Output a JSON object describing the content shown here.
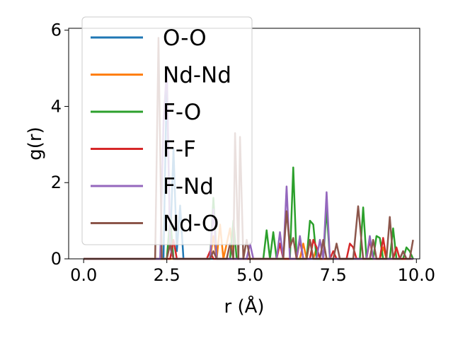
{
  "chart_data": {
    "type": "line",
    "title": "",
    "xlabel": "r (Å)",
    "ylabel": "g(r)",
    "xlim": [
      -0.45,
      10.1
    ],
    "ylim": [
      0,
      6.05
    ],
    "xticks": [
      0.0,
      2.5,
      5.0,
      7.5,
      10.0
    ],
    "xtick_labels": [
      "0.0",
      "2.5",
      "5.0",
      "7.5",
      "10.0"
    ],
    "yticks": [
      0,
      2,
      4,
      6
    ],
    "ytick_labels": [
      "0",
      "2",
      "4",
      "6"
    ],
    "grid": false,
    "legend_position": "upper-left",
    "series": [
      {
        "name": "O-O",
        "color": "#1f77b4",
        "points": [
          [
            0,
            0
          ],
          [
            2.4,
            0
          ],
          [
            2.5,
            4.8
          ],
          [
            2.6,
            0.3
          ],
          [
            2.7,
            2.9
          ],
          [
            2.8,
            0.2
          ],
          [
            2.9,
            1.4
          ],
          [
            3.0,
            0
          ],
          [
            9.9,
            0
          ]
        ]
      },
      {
        "name": "Nd-Nd",
        "color": "#ff7f0e",
        "points": [
          [
            0,
            0
          ],
          [
            3.8,
            0
          ],
          [
            3.9,
            0.6
          ],
          [
            4.0,
            0
          ],
          [
            4.1,
            0.9
          ],
          [
            4.2,
            0
          ],
          [
            4.4,
            0.8
          ],
          [
            4.5,
            0
          ],
          [
            6.5,
            0
          ],
          [
            6.6,
            0.4
          ],
          [
            6.7,
            0
          ],
          [
            6.8,
            0.5
          ],
          [
            6.9,
            0
          ],
          [
            7.0,
            0.3
          ],
          [
            7.1,
            0
          ],
          [
            8.9,
            0
          ],
          [
            9.0,
            0.3
          ],
          [
            9.1,
            0
          ],
          [
            9.9,
            0
          ]
        ]
      },
      {
        "name": "F-O",
        "color": "#2ca02c",
        "points": [
          [
            0,
            0
          ],
          [
            2.5,
            0
          ],
          [
            2.6,
            1.1
          ],
          [
            2.7,
            0
          ],
          [
            3.8,
            0
          ],
          [
            3.9,
            1.6
          ],
          [
            4.0,
            0
          ],
          [
            4.4,
            0
          ],
          [
            4.5,
            1.0
          ],
          [
            4.6,
            0
          ],
          [
            5.4,
            0
          ],
          [
            5.5,
            0.75
          ],
          [
            5.6,
            0
          ],
          [
            5.7,
            0.7
          ],
          [
            5.8,
            0
          ],
          [
            6.2,
            0
          ],
          [
            6.3,
            2.4
          ],
          [
            6.4,
            0
          ],
          [
            6.7,
            0
          ],
          [
            6.8,
            1.0
          ],
          [
            6.9,
            0.9
          ],
          [
            7.0,
            0
          ],
          [
            7.2,
            0
          ],
          [
            7.3,
            1.3
          ],
          [
            7.4,
            0
          ],
          [
            8.3,
            0
          ],
          [
            8.4,
            1.35
          ],
          [
            8.5,
            0
          ],
          [
            8.7,
            0
          ],
          [
            8.8,
            0.6
          ],
          [
            8.9,
            0.55
          ],
          [
            9.0,
            0
          ],
          [
            9.2,
            0
          ],
          [
            9.3,
            0.8
          ],
          [
            9.4,
            0
          ],
          [
            9.6,
            0
          ],
          [
            9.7,
            0.3
          ],
          [
            9.8,
            0.2
          ],
          [
            9.9,
            0
          ]
        ]
      },
      {
        "name": "F-F",
        "color": "#d62728",
        "points": [
          [
            0,
            0
          ],
          [
            2.6,
            0
          ],
          [
            2.7,
            0.5
          ],
          [
            2.8,
            0
          ],
          [
            3.7,
            0
          ],
          [
            3.8,
            0.2
          ],
          [
            3.9,
            0
          ],
          [
            5.8,
            0
          ],
          [
            5.9,
            0.4
          ],
          [
            6.0,
            0
          ],
          [
            6.4,
            0
          ],
          [
            6.5,
            0.5
          ],
          [
            6.6,
            0
          ],
          [
            6.8,
            0
          ],
          [
            6.9,
            0.5
          ],
          [
            7.0,
            0.3
          ],
          [
            7.1,
            0
          ],
          [
            7.4,
            0
          ],
          [
            7.5,
            0.2
          ],
          [
            7.6,
            0
          ],
          [
            7.9,
            0
          ],
          [
            8.0,
            0.4
          ],
          [
            8.1,
            0.3
          ],
          [
            8.2,
            0
          ],
          [
            8.5,
            0
          ],
          [
            8.6,
            0.5
          ],
          [
            8.7,
            0
          ],
          [
            8.9,
            0
          ],
          [
            9.0,
            0.55
          ],
          [
            9.1,
            0
          ],
          [
            9.3,
            0
          ],
          [
            9.4,
            0.3
          ],
          [
            9.5,
            0
          ],
          [
            9.9,
            0
          ]
        ]
      },
      {
        "name": "F-Nd",
        "color": "#9467bd",
        "points": [
          [
            0,
            0
          ],
          [
            2.3,
            0
          ],
          [
            2.4,
            3.6
          ],
          [
            2.5,
            5.0
          ],
          [
            2.6,
            0.3
          ],
          [
            2.7,
            0
          ],
          [
            3.8,
            0
          ],
          [
            3.9,
            1.3
          ],
          [
            4.0,
            0
          ],
          [
            4.9,
            0
          ],
          [
            5.0,
            0.4
          ],
          [
            5.1,
            0
          ],
          [
            5.8,
            0
          ],
          [
            5.9,
            0.7
          ],
          [
            6.0,
            0
          ],
          [
            6.1,
            1.9
          ],
          [
            6.2,
            0
          ],
          [
            6.4,
            0
          ],
          [
            6.5,
            0.6
          ],
          [
            6.6,
            0
          ],
          [
            7.0,
            0
          ],
          [
            7.1,
            0.5
          ],
          [
            7.2,
            0
          ],
          [
            7.3,
            1.75
          ],
          [
            7.4,
            0
          ],
          [
            8.5,
            0
          ],
          [
            8.6,
            0.6
          ],
          [
            8.7,
            0
          ],
          [
            9.5,
            0
          ],
          [
            9.6,
            0.2
          ],
          [
            9.7,
            0
          ],
          [
            9.9,
            0
          ]
        ]
      },
      {
        "name": "Nd-O",
        "color": "#8c564b",
        "points": [
          [
            0,
            0
          ],
          [
            2.15,
            0
          ],
          [
            2.25,
            5.8
          ],
          [
            2.35,
            0
          ],
          [
            2.5,
            0
          ],
          [
            2.6,
            0.4
          ],
          [
            2.7,
            0
          ],
          [
            3.8,
            0
          ],
          [
            3.9,
            0.2
          ],
          [
            4.0,
            0
          ],
          [
            4.3,
            0
          ],
          [
            4.4,
            0.4
          ],
          [
            4.5,
            0
          ],
          [
            4.55,
            3.3
          ],
          [
            4.65,
            0
          ],
          [
            4.7,
            3.2
          ],
          [
            4.8,
            0
          ],
          [
            4.9,
            0.5
          ],
          [
            5.0,
            0
          ],
          [
            6.0,
            0
          ],
          [
            6.1,
            1.25
          ],
          [
            6.2,
            0.3
          ],
          [
            6.3,
            0.55
          ],
          [
            6.4,
            0
          ],
          [
            6.7,
            0
          ],
          [
            6.8,
            0.5
          ],
          [
            6.9,
            0
          ],
          [
            7.1,
            0
          ],
          [
            7.2,
            0.5
          ],
          [
            7.3,
            0
          ],
          [
            7.5,
            0
          ],
          [
            7.6,
            0.4
          ],
          [
            7.7,
            0
          ],
          [
            8.1,
            0
          ],
          [
            8.25,
            1.38
          ],
          [
            8.4,
            0
          ],
          [
            8.6,
            0
          ],
          [
            8.7,
            0.5
          ],
          [
            8.8,
            0
          ],
          [
            9.1,
            0
          ],
          [
            9.2,
            1.1
          ],
          [
            9.3,
            0
          ],
          [
            9.5,
            0
          ],
          [
            9.6,
            0.2
          ],
          [
            9.7,
            0
          ],
          [
            9.8,
            0
          ],
          [
            9.9,
            0.5
          ]
        ]
      }
    ]
  }
}
